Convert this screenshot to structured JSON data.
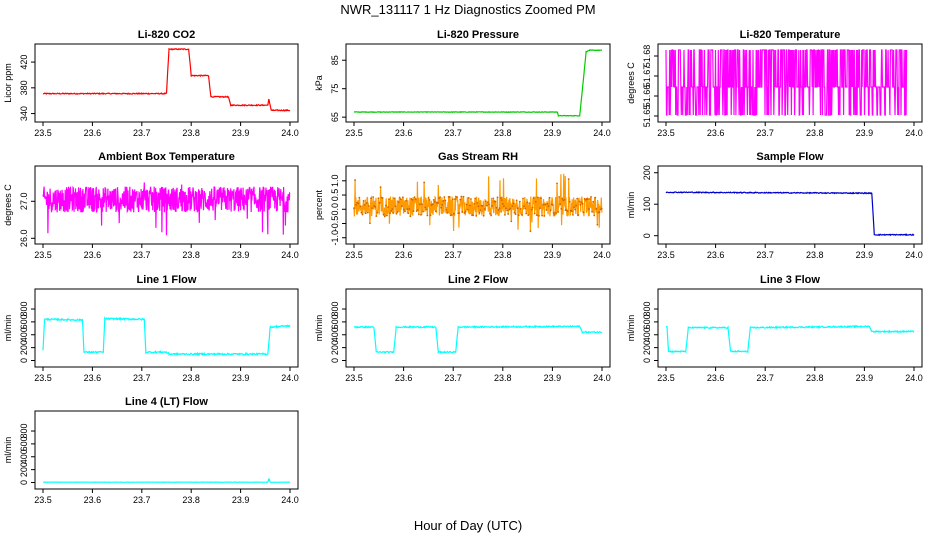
{
  "figure": {
    "title": "NWR_131117  1 Hz Diagnostics Zoomed PM",
    "xlabel": "Hour of Day (UTC)"
  },
  "chart_data": [
    {
      "type": "line",
      "title": "Li-820 CO2",
      "ylabel": "Licor ppm",
      "xlim": [
        23.5,
        24.0
      ],
      "xticks": [
        23.5,
        23.6,
        23.7,
        23.8,
        23.9,
        24.0
      ],
      "xtick_labels": [
        "23.5",
        "23.6",
        "23.7",
        "23.8",
        "23.9",
        "24.0"
      ],
      "ylim": [
        330,
        445
      ],
      "yticks": [
        340,
        380,
        420
      ],
      "ytick_labels": [
        "340",
        "380",
        "420"
      ],
      "color": "#ff0000",
      "series": [
        {
          "style": "step",
          "x": [
            23.5,
            23.75,
            23.755,
            23.795,
            23.8,
            23.835,
            23.84,
            23.875,
            23.88,
            23.955,
            23.957,
            23.96,
            23.962,
            23.965,
            24.0
          ],
          "y": [
            371,
            371,
            440,
            440,
            399,
            399,
            366,
            366,
            353,
            353,
            362,
            353,
            345,
            345,
            345
          ],
          "noise": 0.8
        }
      ]
    },
    {
      "type": "line",
      "title": "Li-820 Pressure",
      "ylabel": "kPa",
      "xlim": [
        23.5,
        24.0
      ],
      "xticks": [
        23.5,
        23.6,
        23.7,
        23.8,
        23.9,
        24.0
      ],
      "xtick_labels": [
        "23.5",
        "23.6",
        "23.7",
        "23.8",
        "23.9",
        "24.0"
      ],
      "ylim": [
        64,
        90
      ],
      "yticks": [
        65,
        75,
        85
      ],
      "ytick_labels": [
        "65",
        "75",
        "85"
      ],
      "color": "#00cc00",
      "series": [
        {
          "style": "step",
          "x": [
            23.5,
            23.91,
            23.912,
            23.955,
            23.96,
            23.968,
            23.975,
            24.0
          ],
          "y": [
            66.8,
            66.8,
            65.5,
            65.5,
            74,
            88,
            88.5,
            88.5
          ],
          "noise": 0.1
        }
      ]
    },
    {
      "type": "line",
      "title": "Li-820 Temperature",
      "ylabel": "degrees C",
      "xlim": [
        23.5,
        24.0
      ],
      "xticks": [
        23.5,
        23.6,
        23.7,
        23.8,
        23.9,
        24.0
      ],
      "xtick_labels": [
        "23.5",
        "23.6",
        "23.7",
        "23.8",
        "23.9",
        "24.0"
      ],
      "ylim": [
        51.648,
        51.685
      ],
      "yticks": [
        51.65,
        51.66,
        51.67,
        51.68
      ],
      "ytick_labels": [
        "51.65",
        "51.66",
        "51.67",
        "51.68"
      ],
      "color": "#ff00ff",
      "series": [
        {
          "style": "levels",
          "x0": 23.5,
          "x1": 23.985,
          "base": 51.6645,
          "high": 51.683,
          "low": 51.6505
        }
      ]
    },
    {
      "type": "line",
      "title": "Ambient Box Temperature",
      "ylabel": "degrees C",
      "xlim": [
        23.5,
        24.0
      ],
      "xticks": [
        23.5,
        23.6,
        23.7,
        23.8,
        23.9,
        24.0
      ],
      "xtick_labels": [
        "23.5",
        "23.6",
        "23.7",
        "23.8",
        "23.9",
        "24.0"
      ],
      "ylim": [
        25.9,
        27.9
      ],
      "yticks": [
        26.0,
        27.0
      ],
      "ytick_labels": [
        "26.0",
        "27.0"
      ],
      "color": "#ff00ff",
      "series": [
        {
          "style": "noise",
          "x0": 23.5,
          "x1": 24.0,
          "center": 27.05,
          "amp": 0.35,
          "spike_low": 26.05,
          "spike_high": 27.55
        }
      ]
    },
    {
      "type": "line",
      "title": "Gas Stream RH",
      "ylabel": "percent",
      "xlim": [
        23.5,
        24.0
      ],
      "xticks": [
        23.5,
        23.6,
        23.7,
        23.8,
        23.9,
        24.0
      ],
      "xtick_labels": [
        "23.5",
        "23.6",
        "23.7",
        "23.8",
        "23.9",
        "24.0"
      ],
      "ylim": [
        -1.15,
        1.45
      ],
      "yticks": [
        -1.0,
        -0.5,
        0.0,
        0.5,
        1.0
      ],
      "ytick_labels": [
        "-1.0",
        "-0.5",
        "0.0",
        "0.5",
        "1.0"
      ],
      "color": "#ff9900",
      "series": [
        {
          "style": "noise",
          "x0": 23.5,
          "x1": 24.0,
          "center": 0.1,
          "amp": 0.35,
          "spike_low": -0.9,
          "spike_high": 1.35,
          "points": true
        }
      ]
    },
    {
      "type": "line",
      "title": "Sample Flow",
      "ylabel": "ml/min",
      "xlim": [
        23.5,
        24.0
      ],
      "xticks": [
        23.5,
        23.6,
        23.7,
        23.8,
        23.9,
        24.0
      ],
      "xtick_labels": [
        "23.5",
        "23.6",
        "23.7",
        "23.8",
        "23.9",
        "24.0"
      ],
      "ylim": [
        -20,
        215
      ],
      "yticks": [
        0,
        100,
        200
      ],
      "ytick_labels": [
        "0",
        "100",
        "200"
      ],
      "color": "#0000cc",
      "series": [
        {
          "style": "step",
          "x": [
            23.5,
            23.91,
            23.915,
            23.92,
            24.0
          ],
          "y": [
            138,
            135,
            135,
            3,
            3
          ],
          "noise": 1.5
        }
      ]
    },
    {
      "type": "line",
      "title": "Line 1 Flow",
      "ylabel": "ml/min",
      "xlim": [
        23.5,
        24.0
      ],
      "xticks": [
        23.5,
        23.6,
        23.7,
        23.8,
        23.9,
        24.0
      ],
      "xtick_labels": [
        "23.5",
        "23.6",
        "23.7",
        "23.8",
        "23.9",
        "24.0"
      ],
      "ylim": [
        -70,
        1080
      ],
      "yticks": [
        0,
        200,
        400,
        600,
        800
      ],
      "ytick_labels": [
        "0",
        "200",
        "400",
        "600",
        "800"
      ],
      "color": "#00ffff",
      "series": [
        {
          "style": "step",
          "x": [
            23.5,
            23.503,
            23.58,
            23.583,
            23.622,
            23.625,
            23.705,
            23.708,
            23.75,
            23.755,
            23.955,
            23.96,
            24.0
          ],
          "y": [
            150,
            640,
            630,
            130,
            130,
            650,
            640,
            130,
            130,
            100,
            100,
            520,
            540
          ],
          "noise": 12
        }
      ]
    },
    {
      "type": "line",
      "title": "Line 2 Flow",
      "ylabel": "ml/min",
      "xlim": [
        23.5,
        24.0
      ],
      "xticks": [
        23.5,
        23.6,
        23.7,
        23.8,
        23.9,
        24.0
      ],
      "xtick_labels": [
        "23.5",
        "23.6",
        "23.7",
        "23.8",
        "23.9",
        "24.0"
      ],
      "ylim": [
        -70,
        1080
      ],
      "yticks": [
        0,
        200,
        400,
        600,
        800
      ],
      "ytick_labels": [
        "0",
        "200",
        "400",
        "600",
        "800"
      ],
      "color": "#00ffff",
      "series": [
        {
          "style": "step",
          "x": [
            23.5,
            23.54,
            23.545,
            23.58,
            23.585,
            23.665,
            23.67,
            23.705,
            23.71,
            23.955,
            23.96,
            24.0
          ],
          "y": [
            520,
            520,
            130,
            130,
            520,
            520,
            130,
            130,
            520,
            530,
            440,
            440
          ],
          "noise": 10
        }
      ]
    },
    {
      "type": "line",
      "title": "Line 3 Flow",
      "ylabel": "ml/min",
      "xlim": [
        23.5,
        24.0
      ],
      "xticks": [
        23.5,
        23.6,
        23.7,
        23.8,
        23.9,
        24.0
      ],
      "xtick_labels": [
        "23.5",
        "23.6",
        "23.7",
        "23.8",
        "23.9",
        "24.0"
      ],
      "ylim": [
        -70,
        1080
      ],
      "yticks": [
        0,
        200,
        400,
        600,
        800
      ],
      "ytick_labels": [
        "0",
        "200",
        "400",
        "600",
        "800"
      ],
      "color": "#00ffff",
      "series": [
        {
          "style": "step",
          "x": [
            23.5,
            23.502,
            23.505,
            23.54,
            23.545,
            23.625,
            23.63,
            23.665,
            23.67,
            23.91,
            23.915,
            24.0
          ],
          "y": [
            530,
            530,
            140,
            140,
            510,
            510,
            140,
            140,
            510,
            530,
            450,
            450
          ],
          "noise": 10
        }
      ]
    },
    {
      "type": "line",
      "title": "Line 4 (LT) Flow",
      "ylabel": "ml/min",
      "xlim": [
        23.5,
        24.0
      ],
      "xticks": [
        23.5,
        23.6,
        23.7,
        23.8,
        23.9,
        24.0
      ],
      "xtick_labels": [
        "23.5",
        "23.6",
        "23.7",
        "23.8",
        "23.9",
        "24.0"
      ],
      "ylim": [
        -70,
        1080
      ],
      "yticks": [
        0,
        200,
        400,
        600,
        800
      ],
      "ytick_labels": [
        "0",
        "200",
        "400",
        "600",
        "800"
      ],
      "color": "#00ffff",
      "series": [
        {
          "style": "step",
          "x": [
            23.5,
            23.955,
            23.957,
            23.96,
            23.962,
            24.0
          ],
          "y": [
            5,
            5,
            60,
            10,
            5,
            5
          ],
          "noise": 2
        }
      ]
    }
  ]
}
